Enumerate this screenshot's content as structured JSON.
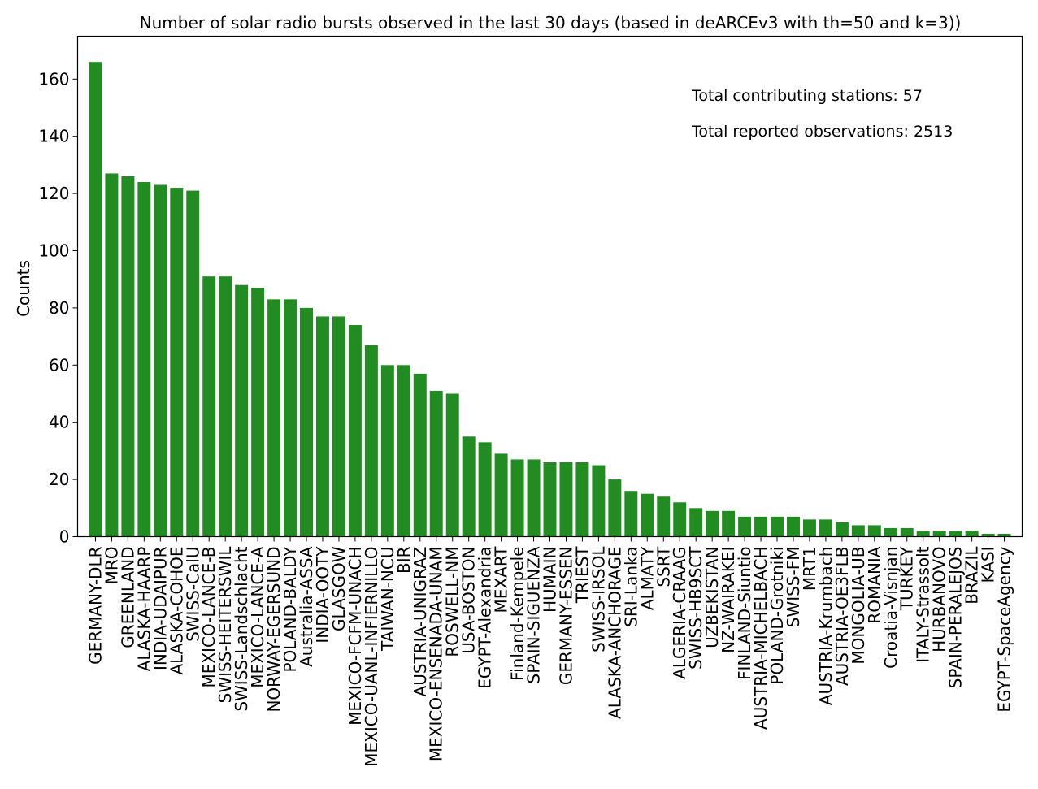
{
  "chart_data": {
    "type": "bar",
    "title": "Number of solar radio bursts observed in the last 30 days (based in deARCEv3 with th=50 and k=3))",
    "xlabel": "",
    "ylabel": "Counts",
    "ylim": [
      0,
      175
    ],
    "yticks": [
      0,
      20,
      40,
      60,
      80,
      100,
      120,
      140,
      160
    ],
    "bar_color": "#228b22",
    "grid": false,
    "categories": [
      "GERMANY-DLR",
      "MRO",
      "GREENLAND",
      "ALASKA-HAARP",
      "INDIA-UDAIPUR",
      "ALASKA-COHOE",
      "SWISS-CalU",
      "MEXICO-LANCE-B",
      "SWISS-HEITERSWIL",
      "SWISS-Landschlacht",
      "MEXICO-LANCE-A",
      "NORWAY-EGERSUND",
      "POLAND-BALDY",
      "Australia-ASSA",
      "INDIA-OOTY",
      "GLASGOW",
      "MEXICO-FCFM-UNACH",
      "MEXICO-UANL-INFIERNILLO",
      "TAIWAN-NCU",
      "BIR",
      "AUSTRIA-UNIGRAZ",
      "MEXICO-ENSENADA-UNAM",
      "ROSWELL-NM",
      "USA-BOSTON",
      "EGYPT-Alexandria",
      "MEXART",
      "Finland-Kempele",
      "SPAIN-SIGUENZA",
      "HUMAIN",
      "GERMANY-ESSEN",
      "TRIEST",
      "SWISS-IRSOL",
      "ALASKA-ANCHORAGE",
      "SRI-Lanka",
      "ALMATY",
      "SSRT",
      "ALGERIA-CRAAG",
      "SWISS-HB9SCT",
      "UZBEKISTAN",
      "NZ-WAIRAKEI",
      "FINLAND-Siuntio",
      "AUSTRIA-MICHELBACH",
      "POLAND-Grotniki",
      "SWISS-FM",
      "MRT1",
      "AUSTRIA-Krumbach",
      "AUSTRIA-OE3FLB",
      "MONGOLIA-UB",
      "ROMANIA",
      "Croatia-Visnjan",
      "TURKEY",
      "ITALY-Strassolt",
      "HURBANOVO",
      "SPAIN-PERALEJOS",
      "BRAZIL",
      "KASI",
      "EGYPT-SpaceAgency"
    ],
    "values": [
      166,
      127,
      126,
      124,
      123,
      122,
      121,
      91,
      91,
      88,
      87,
      83,
      83,
      80,
      77,
      77,
      74,
      67,
      60,
      60,
      57,
      51,
      50,
      35,
      33,
      29,
      27,
      27,
      26,
      26,
      26,
      25,
      20,
      16,
      15,
      14,
      12,
      10,
      9,
      9,
      7,
      7,
      7,
      7,
      6,
      6,
      5,
      4,
      4,
      3,
      3,
      2,
      2,
      2,
      2,
      1,
      1
    ]
  },
  "annotations": {
    "stations": "Total contributing stations: 57",
    "observations": "Total reported observations: 2513"
  }
}
